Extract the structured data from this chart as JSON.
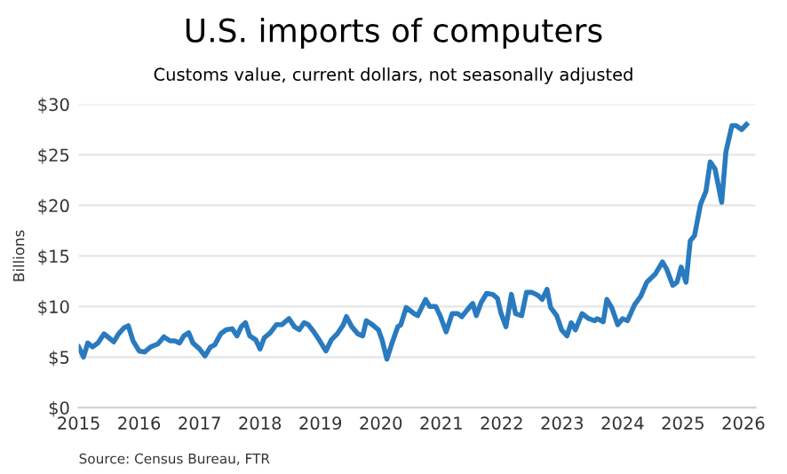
{
  "chart_data": {
    "type": "line",
    "title": "U.S. imports of computers",
    "subtitle": "Customs value, current dollars, not seasonally adjusted",
    "ylabel": "Billions",
    "annotations": [
      "Source: Census Bureau, FTR"
    ],
    "x": [
      2015.0,
      2015.08,
      2015.15,
      2015.23,
      2015.32,
      2015.42,
      2015.48,
      2015.58,
      2015.66,
      2015.75,
      2015.82,
      2015.9,
      2016.0,
      2016.09,
      2016.19,
      2016.31,
      2016.41,
      2016.51,
      2016.59,
      2016.67,
      2016.74,
      2016.82,
      2016.89,
      2017.0,
      2017.09,
      2017.18,
      2017.25,
      2017.35,
      2017.44,
      2017.54,
      2017.62,
      2017.69,
      2017.76,
      2017.83,
      2017.93,
      2018.0,
      2018.07,
      2018.17,
      2018.27,
      2018.36,
      2018.48,
      2018.57,
      2018.65,
      2018.73,
      2018.8,
      2018.89,
      2018.99,
      2019.09,
      2019.18,
      2019.28,
      2019.38,
      2019.43,
      2019.52,
      2019.62,
      2019.7,
      2019.76,
      2019.86,
      2019.96,
      2020.02,
      2020.1,
      2020.18,
      2020.28,
      2020.33,
      2020.42,
      2020.55,
      2020.61,
      2020.74,
      2020.81,
      2020.91,
      2020.98,
      2021.08,
      2021.18,
      2021.27,
      2021.34,
      2021.42,
      2021.52,
      2021.58,
      2021.66,
      2021.75,
      2021.85,
      2021.93,
      2021.99,
      2022.07,
      2022.16,
      2022.23,
      2022.33,
      2022.41,
      2022.5,
      2022.6,
      2022.67,
      2022.75,
      2022.81,
      2022.91,
      2022.99,
      2023.08,
      2023.15,
      2023.22,
      2023.33,
      2023.44,
      2023.54,
      2023.58,
      2023.68,
      2023.74,
      2023.82,
      2023.92,
      2024.0,
      2024.08,
      2024.2,
      2024.3,
      2024.4,
      2024.54,
      2024.66,
      2024.73,
      2024.83,
      2024.9,
      2024.97,
      2025.05,
      2025.12,
      2025.19,
      2025.29,
      2025.38,
      2025.45,
      2025.53,
      2025.64,
      2025.71,
      2025.81,
      2025.88,
      2025.97,
      2026.05
    ],
    "series": [
      {
        "color": "#2a7abf",
        "values": [
          6.0,
          5.0,
          6.4,
          6.0,
          6.4,
          7.3,
          7.0,
          6.5,
          7.3,
          7.9,
          8.1,
          6.6,
          5.6,
          5.5,
          6.0,
          6.3,
          7.0,
          6.6,
          6.6,
          6.4,
          7.1,
          7.4,
          6.4,
          5.8,
          5.1,
          6.0,
          6.2,
          7.3,
          7.7,
          7.8,
          7.1,
          8.0,
          8.4,
          7.1,
          6.7,
          5.8,
          6.9,
          7.4,
          8.2,
          8.2,
          8.8,
          8.0,
          7.7,
          8.4,
          8.2,
          7.5,
          6.6,
          5.6,
          6.7,
          7.3,
          8.2,
          9.0,
          8.0,
          7.3,
          7.1,
          8.6,
          8.2,
          7.7,
          6.7,
          4.8,
          6.3,
          8.0,
          8.2,
          9.9,
          9.3,
          9.1,
          10.7,
          10.0,
          10.0,
          9.1,
          7.5,
          9.3,
          9.3,
          9.0,
          9.6,
          10.3,
          9.1,
          10.4,
          11.3,
          11.2,
          10.8,
          9.3,
          8.0,
          11.2,
          9.3,
          9.1,
          11.4,
          11.4,
          11.1,
          10.7,
          11.7,
          9.9,
          9.1,
          7.7,
          7.1,
          8.4,
          7.7,
          9.3,
          8.8,
          8.6,
          8.8,
          8.5,
          10.7,
          9.9,
          8.2,
          8.8,
          8.6,
          10.2,
          11.0,
          12.4,
          13.2,
          14.4,
          13.7,
          12.1,
          12.4,
          13.9,
          12.4,
          16.5,
          17.0,
          20.1,
          21.4,
          24.3,
          23.6,
          20.3,
          25.3,
          27.9,
          27.9,
          27.5,
          28.0
        ]
      }
    ],
    "xlim": [
      2015,
      2026.2
    ],
    "xticks": [
      2015,
      2016,
      2017,
      2018,
      2019,
      2020,
      2021,
      2022,
      2023,
      2024,
      2025,
      2026
    ],
    "ylim": [
      0,
      30
    ],
    "yticks": [
      {
        "value": 0,
        "label": "$0"
      },
      {
        "value": 5,
        "label": "$5"
      },
      {
        "value": 10,
        "label": "$10"
      },
      {
        "value": 15,
        "label": "$15"
      },
      {
        "value": 20,
        "label": "$20"
      },
      {
        "value": 25,
        "label": "$25"
      },
      {
        "value": 30,
        "label": "$30"
      }
    ],
    "grid": "y",
    "legend": false,
    "marker": "none",
    "line_style": "solid"
  }
}
